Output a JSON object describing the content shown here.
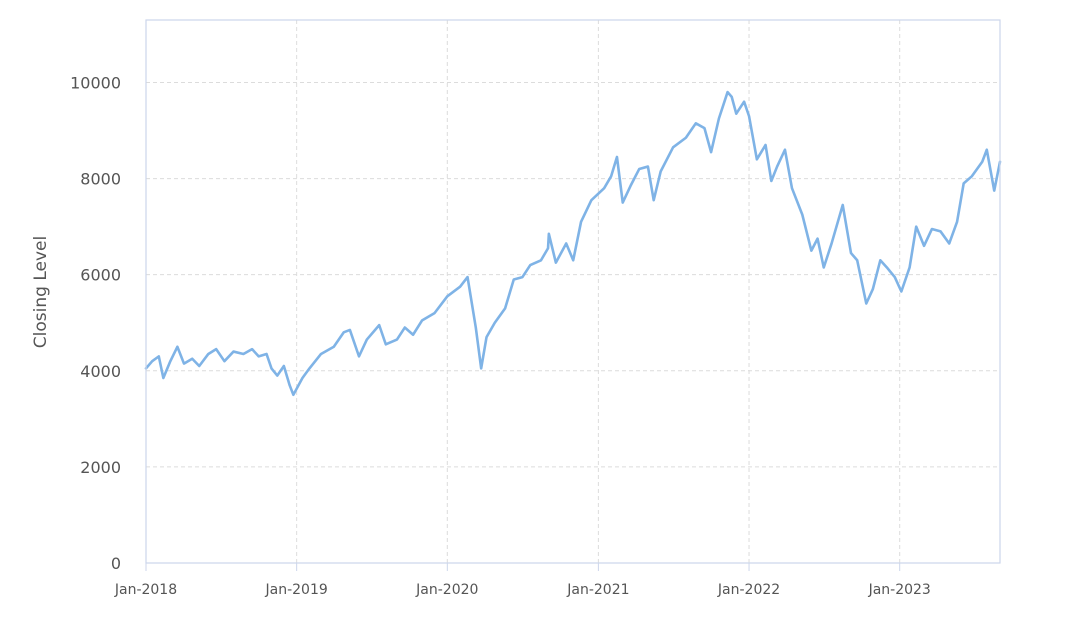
{
  "chart_data": {
    "type": "line",
    "title": "",
    "xlabel": "",
    "ylabel": "Closing Level",
    "x_range": [
      "2018-01-01",
      "2023-09-01"
    ],
    "ylim": [
      0,
      11300
    ],
    "y_ticks": [
      0,
      2000,
      4000,
      6000,
      8000,
      10000
    ],
    "x_ticks": [
      {
        "date": "2018-01-01",
        "label": "Jan-2018"
      },
      {
        "date": "2019-01-01",
        "label": "Jan-2019"
      },
      {
        "date": "2020-01-01",
        "label": "Jan-2020"
      },
      {
        "date": "2021-01-01",
        "label": "Jan-2021"
      },
      {
        "date": "2022-01-01",
        "label": "Jan-2022"
      },
      {
        "date": "2023-01-01",
        "label": "Jan-2023"
      }
    ],
    "grid": true,
    "series": [
      {
        "color": "#7fb3e6",
        "points": [
          [
            "2018-01-01",
            4050
          ],
          [
            "2018-01-16",
            4200
          ],
          [
            "2018-02-01",
            4300
          ],
          [
            "2018-02-12",
            3850
          ],
          [
            "2018-03-01",
            4200
          ],
          [
            "2018-03-18",
            4500
          ],
          [
            "2018-04-03",
            4150
          ],
          [
            "2018-04-23",
            4250
          ],
          [
            "2018-05-10",
            4100
          ],
          [
            "2018-06-01",
            4350
          ],
          [
            "2018-06-20",
            4450
          ],
          [
            "2018-07-10",
            4200
          ],
          [
            "2018-08-01",
            4400
          ],
          [
            "2018-08-25",
            4350
          ],
          [
            "2018-09-15",
            4450
          ],
          [
            "2018-10-01",
            4300
          ],
          [
            "2018-10-20",
            4350
          ],
          [
            "2018-11-01",
            4050
          ],
          [
            "2018-11-15",
            3900
          ],
          [
            "2018-12-01",
            4100
          ],
          [
            "2018-12-15",
            3700
          ],
          [
            "2018-12-24",
            3500
          ],
          [
            "2019-01-15",
            3850
          ],
          [
            "2019-02-01",
            4050
          ],
          [
            "2019-03-01",
            4350
          ],
          [
            "2019-04-01",
            4500
          ],
          [
            "2019-04-25",
            4800
          ],
          [
            "2019-05-10",
            4850
          ],
          [
            "2019-06-01",
            4300
          ],
          [
            "2019-06-20",
            4650
          ],
          [
            "2019-07-20",
            4950
          ],
          [
            "2019-08-05",
            4550
          ],
          [
            "2019-09-01",
            4650
          ],
          [
            "2019-09-20",
            4900
          ],
          [
            "2019-10-10",
            4750
          ],
          [
            "2019-11-01",
            5050
          ],
          [
            "2019-12-01",
            5200
          ],
          [
            "2020-01-01",
            5550
          ],
          [
            "2020-02-01",
            5750
          ],
          [
            "2020-02-19",
            5950
          ],
          [
            "2020-03-10",
            4900
          ],
          [
            "2020-03-23",
            4050
          ],
          [
            "2020-04-05",
            4700
          ],
          [
            "2020-04-25",
            5000
          ],
          [
            "2020-05-20",
            5300
          ],
          [
            "2020-06-10",
            5900
          ],
          [
            "2020-07-01",
            5950
          ],
          [
            "2020-07-20",
            6200
          ],
          [
            "2020-08-15",
            6300
          ],
          [
            "2020-09-01",
            6550
          ],
          [
            "2020-09-03",
            6850
          ],
          [
            "2020-09-20",
            6250
          ],
          [
            "2020-10-15",
            6650
          ],
          [
            "2020-11-01",
            6300
          ],
          [
            "2020-11-20",
            7100
          ],
          [
            "2020-12-15",
            7550
          ],
          [
            "2021-01-15",
            7800
          ],
          [
            "2021-02-01",
            8050
          ],
          [
            "2021-02-15",
            8450
          ],
          [
            "2021-03-01",
            7500
          ],
          [
            "2021-03-20",
            7850
          ],
          [
            "2021-04-10",
            8200
          ],
          [
            "2021-05-01",
            8250
          ],
          [
            "2021-05-15",
            7550
          ],
          [
            "2021-06-01",
            8150
          ],
          [
            "2021-07-01",
            8650
          ],
          [
            "2021-08-01",
            8850
          ],
          [
            "2021-08-25",
            9150
          ],
          [
            "2021-09-15",
            9050
          ],
          [
            "2021-10-01",
            8550
          ],
          [
            "2021-10-20",
            9250
          ],
          [
            "2021-11-10",
            9800
          ],
          [
            "2021-11-20",
            9700
          ],
          [
            "2021-12-01",
            9350
          ],
          [
            "2021-12-20",
            9600
          ],
          [
            "2022-01-01",
            9300
          ],
          [
            "2022-01-20",
            8400
          ],
          [
            "2022-02-10",
            8700
          ],
          [
            "2022-02-24",
            7950
          ],
          [
            "2022-03-10",
            8250
          ],
          [
            "2022-03-29",
            8600
          ],
          [
            "2022-04-15",
            7800
          ],
          [
            "2022-05-10",
            7250
          ],
          [
            "2022-06-01",
            6500
          ],
          [
            "2022-06-16",
            6750
          ],
          [
            "2022-07-01",
            6150
          ],
          [
            "2022-07-20",
            6650
          ],
          [
            "2022-08-16",
            7450
          ],
          [
            "2022-09-05",
            6450
          ],
          [
            "2022-09-20",
            6300
          ],
          [
            "2022-10-12",
            5400
          ],
          [
            "2022-10-28",
            5700
          ],
          [
            "2022-11-15",
            6300
          ],
          [
            "2022-12-01",
            6150
          ],
          [
            "2022-12-20",
            5950
          ],
          [
            "2023-01-05",
            5650
          ],
          [
            "2023-01-25",
            6150
          ],
          [
            "2023-02-10",
            7000
          ],
          [
            "2023-03-01",
            6600
          ],
          [
            "2023-03-20",
            6950
          ],
          [
            "2023-04-10",
            6900
          ],
          [
            "2023-05-01",
            6650
          ],
          [
            "2023-05-20",
            7100
          ],
          [
            "2023-06-05",
            7900
          ],
          [
            "2023-06-25",
            8050
          ],
          [
            "2023-07-20",
            8350
          ],
          [
            "2023-07-31",
            8600
          ],
          [
            "2023-08-18",
            7750
          ],
          [
            "2023-09-01",
            8350
          ]
        ]
      }
    ]
  }
}
